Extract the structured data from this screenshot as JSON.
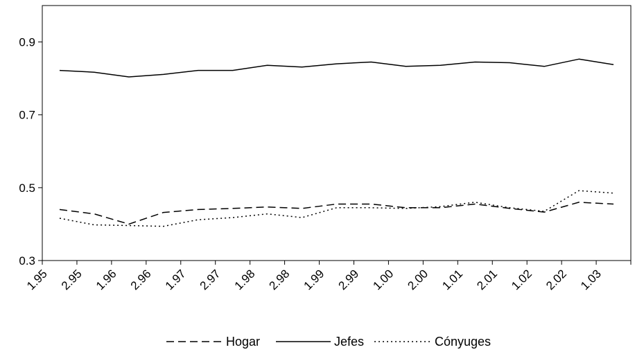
{
  "chart_data": {
    "type": "line",
    "categories": [
      "1.95",
      "2.95",
      "1.96",
      "2.96",
      "1.97",
      "2.97",
      "1.98",
      "2.98",
      "1.99",
      "2.99",
      "1.00",
      "2.00",
      "1.01",
      "2.01",
      "1.02",
      "2.02",
      "1.03"
    ],
    "yticks": [
      "0.3",
      "0.5",
      "0.7",
      "0.9"
    ],
    "ylim": [
      0.3,
      1.0
    ],
    "grid": false,
    "legend_position": "bottom",
    "series": [
      {
        "name": "Hogar",
        "style": "dashed",
        "values": [
          0.44,
          0.428,
          0.4,
          0.432,
          0.44,
          0.443,
          0.447,
          0.443,
          0.455,
          0.455,
          0.445,
          0.445,
          0.455,
          0.443,
          0.433,
          0.46,
          0.455
        ]
      },
      {
        "name": "Jefes",
        "style": "solid",
        "values": [
          0.822,
          0.817,
          0.804,
          0.811,
          0.822,
          0.822,
          0.836,
          0.831,
          0.84,
          0.845,
          0.833,
          0.836,
          0.845,
          0.843,
          0.833,
          0.853,
          0.838
        ]
      },
      {
        "name": "Cónyuges",
        "style": "dotted",
        "values": [
          0.416,
          0.398,
          0.396,
          0.394,
          0.412,
          0.418,
          0.428,
          0.418,
          0.445,
          0.445,
          0.443,
          0.448,
          0.46,
          0.445,
          0.435,
          0.492,
          0.485
        ]
      }
    ],
    "colors": {
      "line": "#000000",
      "axis": "#000000"
    }
  }
}
